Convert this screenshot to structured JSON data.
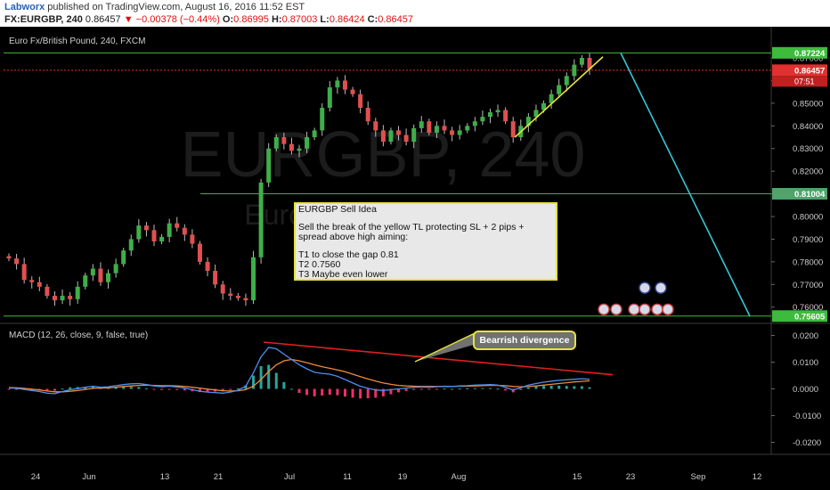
{
  "header": {
    "author": "Labworx",
    "published": "published on TradingView.com, August 16, 2016 11:52 EST",
    "symbol": "FX:EURGBP, 240",
    "last": "0.86457",
    "change": "−0.00378 (−0.44%)",
    "o_label": "O:",
    "o_value": "0.86995",
    "h_label": "H:",
    "h_value": "0.87003",
    "l_label": "L:",
    "l_value": "0.86424",
    "c_label": "C:",
    "c_value": "0.86457"
  },
  "chart_data": [
    {
      "type": "candlestick",
      "title": "Euro Fx/British Pound, 240, FXCM",
      "watermark": "EURGBP, 240",
      "watermark_sub": "Euro Fx/British Pound",
      "y_ticks": [
        "0.87000",
        "0.86000",
        "0.85000",
        "0.84000",
        "0.83000",
        "0.82000",
        "0.81000",
        "0.80000",
        "0.79000",
        "0.78000",
        "0.77000",
        "0.76000"
      ],
      "y_tick_values": [
        0.87,
        0.86,
        0.85,
        0.84,
        0.83,
        0.82,
        0.81,
        0.8,
        0.79,
        0.78,
        0.77,
        0.76
      ],
      "ylim": [
        0.754,
        0.8818
      ],
      "x_ticks": [
        "24",
        "Jun",
        "13",
        "21",
        "Jul",
        "11",
        "19",
        "Aug",
        "15",
        "23",
        "Sep",
        "12"
      ],
      "price_labels": [
        {
          "text": "0.86457",
          "value": 0.86457,
          "color": "#e03030",
          "sub": "07:51"
        },
        {
          "text": "0.81004",
          "value": 0.81004,
          "color": "#4fa36b"
        },
        {
          "text": "0.75605",
          "value": 0.75605,
          "color": "#3dbb3d"
        },
        {
          "text": "0.87224",
          "value": 0.87224,
          "color": "#3dbb3d"
        }
      ],
      "series": [
        {
          "name": "close",
          "type": "line",
          "values": [
            0.7815,
            0.779,
            0.772,
            0.771,
            0.769,
            0.765,
            0.763,
            0.765,
            0.7635,
            0.769,
            0.774,
            0.777,
            0.771,
            0.775,
            0.779,
            0.785,
            0.79,
            0.796,
            0.794,
            0.789,
            0.791,
            0.797,
            0.795,
            0.792,
            0.788,
            0.78,
            0.776,
            0.77,
            0.766,
            0.765,
            0.764,
            0.763,
            0.782,
            0.815,
            0.83,
            0.835,
            0.832,
            0.829,
            0.83,
            0.835,
            0.838,
            0.848,
            0.857,
            0.86,
            0.856,
            0.854,
            0.848,
            0.842,
            0.838,
            0.833,
            0.838,
            0.836,
            0.833,
            0.839,
            0.842,
            0.837,
            0.84,
            0.838,
            0.836,
            0.838,
            0.84,
            0.842,
            0.844,
            0.846,
            0.847,
            0.842,
            0.835,
            0.84,
            0.844,
            0.847,
            0.85,
            0.854,
            0.858,
            0.862,
            0.867,
            0.87,
            0.865
          ]
        }
      ],
      "drawings": [
        {
          "label": "yellow trendline",
          "color": "#e6e23a",
          "from": [
            1.0,
            0.835
          ],
          "to": [
            1.0,
            0.8705
          ]
        },
        {
          "label": "cyan projection",
          "color": "#35c6d6",
          "from": [
            0.8722
          ],
          "to": [
            0.756
          ]
        },
        {
          "label": "gap line",
          "color": "#4fa36b",
          "value": 0.81004
        },
        {
          "label": "target line",
          "color": "#3dbb3d",
          "value": 0.75605
        },
        {
          "label": "resistance line",
          "color": "#3dbb3d",
          "value": 0.8722
        },
        {
          "label": "last price line",
          "color": "#e03030",
          "value": 0.86457
        }
      ]
    },
    {
      "type": "line",
      "title": "MACD (12, 26, close, 9, false, true)",
      "y_ticks": [
        "0.0200",
        "0.0100",
        "0.0000",
        "-0.0100",
        "-0.0200"
      ],
      "y_tick_values": [
        0.02,
        0.01,
        0.0,
        -0.01,
        -0.02
      ],
      "ylim": [
        -0.0245,
        0.0245
      ],
      "series": [
        {
          "name": "MACD",
          "color": "#4f8ef0",
          "values": [
            0.0003,
            0.0002,
            -0.0002,
            -0.0006,
            -0.001,
            -0.0016,
            -0.0018,
            -0.001,
            -0.0003,
            0.0001,
            0.0006,
            0.001,
            0.0006,
            0.0008,
            0.0012,
            0.0016,
            0.0019,
            0.002,
            0.0016,
            0.0011,
            0.0008,
            0.001,
            0.0007,
            0.0003,
            -0.0003,
            -0.0009,
            -0.0012,
            -0.0014,
            -0.0016,
            -0.0012,
            -0.0005,
            0.001,
            0.006,
            0.012,
            0.0155,
            0.015,
            0.013,
            0.011,
            0.009,
            0.0075,
            0.0062,
            0.0058,
            0.0055,
            0.0047,
            0.0035,
            0.0022,
            0.001,
            0.0002,
            -0.0004,
            -0.0006,
            -0.0003,
            0.0,
            0.0003,
            0.0006,
            0.0007,
            0.0006,
            0.0008,
            0.001,
            0.0009,
            0.0011,
            0.0012,
            0.0014,
            0.0015,
            0.0016,
            0.0014,
            0.0006,
            -0.0004,
            0.0004,
            0.0014,
            0.002,
            0.0025,
            0.0029,
            0.0032,
            0.0034,
            0.0036,
            0.0038,
            0.0036
          ]
        },
        {
          "name": "Signal",
          "color": "#ee8a3c",
          "values": [
            0.0005,
            0.0004,
            0.0002,
            -0.0001,
            -0.0004,
            -0.0008,
            -0.0011,
            -0.0011,
            -0.0009,
            -0.0006,
            -0.0002,
            0.0002,
            0.0003,
            0.0004,
            0.0006,
            0.0009,
            0.0011,
            0.0013,
            0.0014,
            0.0013,
            0.0012,
            0.0012,
            0.0011,
            0.0009,
            0.0006,
            0.0003,
            -0.0001,
            -0.0004,
            -0.0007,
            -0.0008,
            -0.0007,
            -0.0003,
            0.001,
            0.0035,
            0.0065,
            0.009,
            0.0105,
            0.011,
            0.0105,
            0.0098,
            0.009,
            0.0083,
            0.0077,
            0.0071,
            0.0064,
            0.0055,
            0.0046,
            0.0037,
            0.0029,
            0.0022,
            0.0017,
            0.0013,
            0.0011,
            0.001,
            0.0009,
            0.0009,
            0.0009,
            0.0009,
            0.0009,
            0.001,
            0.001,
            0.0011,
            0.0012,
            0.0013,
            0.0013,
            0.0012,
            0.0009,
            0.0008,
            0.0009,
            0.0011,
            0.0014,
            0.0017,
            0.002,
            0.0023,
            0.0026,
            0.0028,
            0.003
          ]
        }
      ],
      "divergence_line": {
        "color": "#e02020"
      }
    }
  ],
  "annotations": {
    "idea_title": "EURGBP Sell Idea",
    "idea_line1": "Sell the break of the yellow TL protecting SL + 2 pips +",
    "idea_line2": "spread above high aiming:",
    "idea_t1": "T1 to close the gap 0.81",
    "idea_t2": "T2 0.7560",
    "idea_t3": "T3 Maybe even lower",
    "divergence_label": "Bearrish divergence"
  }
}
